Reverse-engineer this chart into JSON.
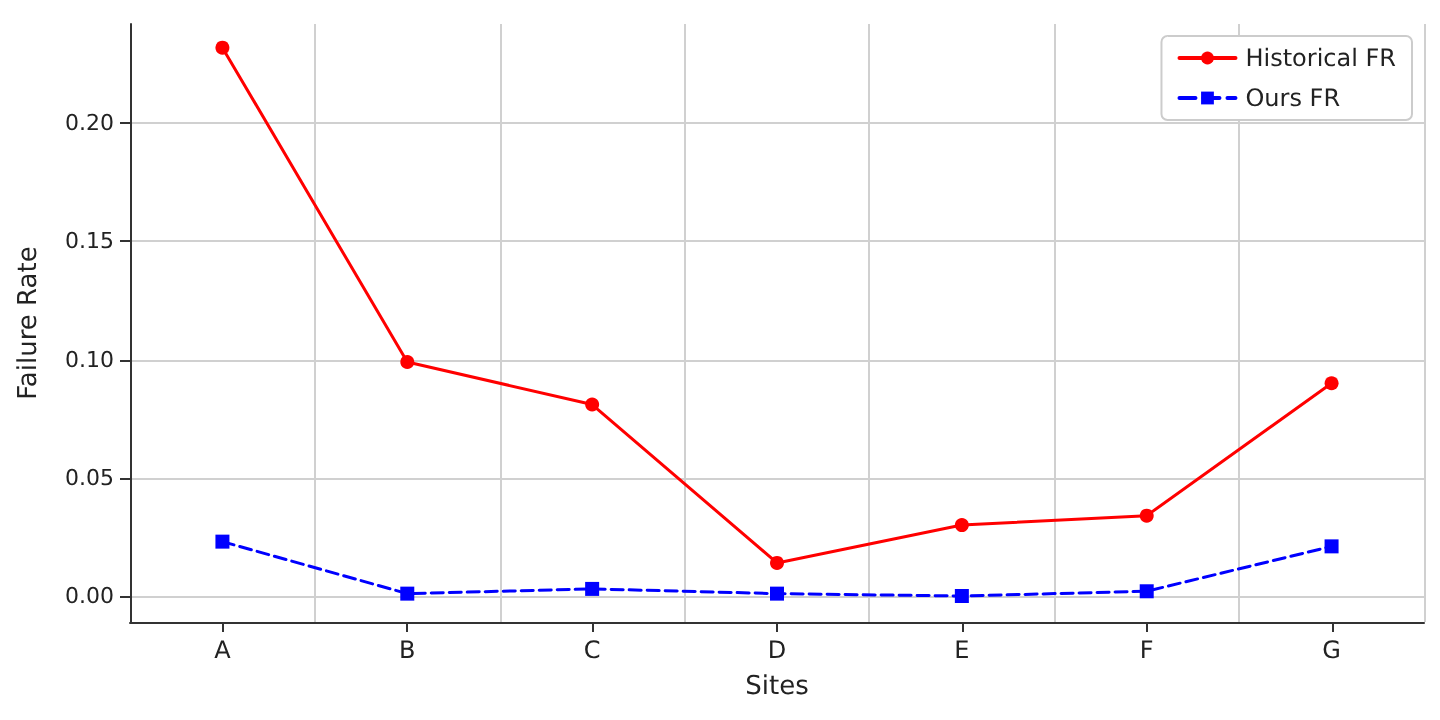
{
  "chart_data": {
    "type": "line",
    "xlabel": "Sites",
    "ylabel": "Failure Rate",
    "categories": [
      "A",
      "B",
      "C",
      "D",
      "E",
      "F",
      "G"
    ],
    "series": [
      {
        "name": "Historical FR",
        "color": "#ff0000",
        "marker": "circle",
        "line_style": "solid",
        "values": [
          0.232,
          0.099,
          0.081,
          0.014,
          0.03,
          0.034,
          0.09
        ]
      },
      {
        "name": "Ours FR",
        "color": "#0000ff",
        "marker": "square",
        "line_style": "dashed",
        "values": [
          0.023,
          0.001,
          0.003,
          0.001,
          0.0,
          0.002,
          0.021
        ]
      }
    ],
    "ylim": [
      -0.011,
      0.242
    ],
    "yticks": [
      {
        "value": 0,
        "label": "0.00"
      },
      {
        "value": 0.05,
        "label": "0.05"
      },
      {
        "value": 0.1,
        "label": "0.10"
      },
      {
        "value": 0.15,
        "label": "0.15"
      },
      {
        "value": 0.2,
        "label": "0.20"
      }
    ],
    "grid": true,
    "legend": "top right"
  }
}
